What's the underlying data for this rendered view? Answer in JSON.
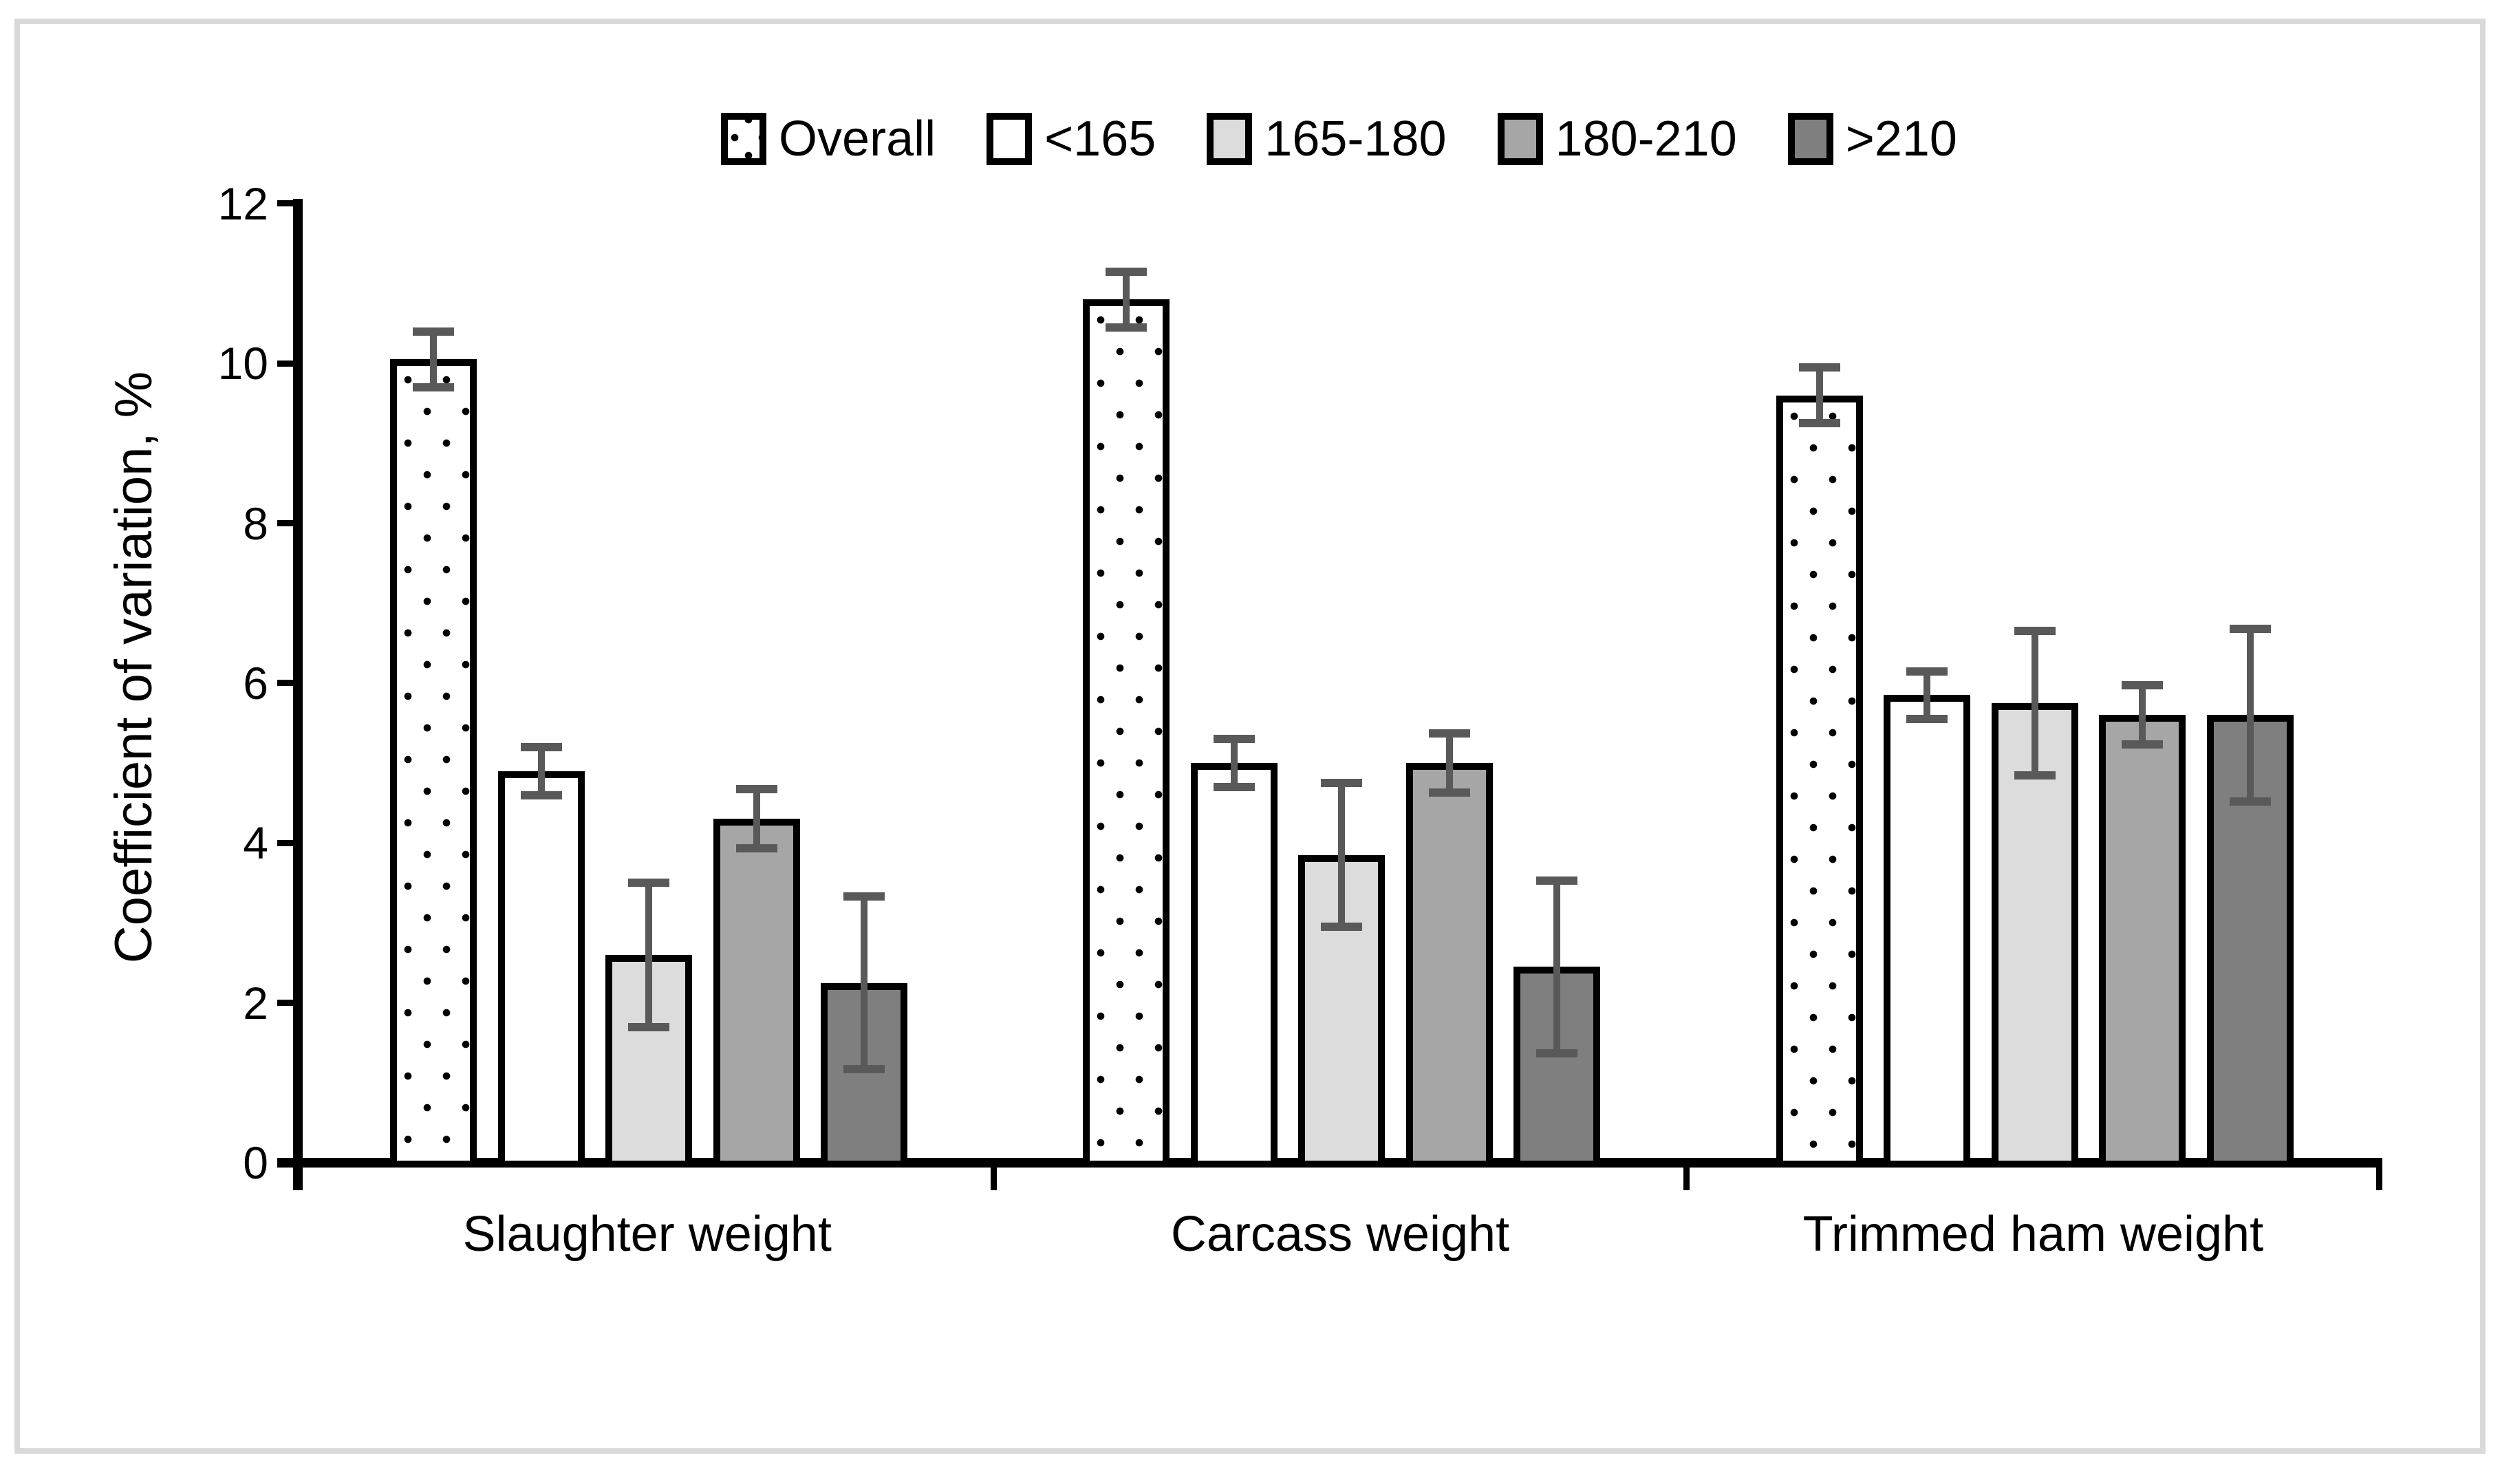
{
  "figure": {
    "frame_border_color": "#d9d9d9",
    "background_color": "#ffffff",
    "axis_color": "#000000",
    "error_bar_color": "#595959"
  },
  "chart_data": {
    "type": "bar",
    "title": "",
    "xlabel": "",
    "ylabel": "Coefficient of variation, %",
    "ylim": [
      0,
      12
    ],
    "yticks": [
      0,
      2,
      4,
      6,
      8,
      10,
      12
    ],
    "grid": false,
    "legend_position": "top-center",
    "error_bars": true,
    "categories": [
      "Slaughter weight",
      "Carcass weight",
      "Trimmed ham weight"
    ],
    "series": [
      {
        "name": "Overall",
        "fill": "dot-pattern",
        "values": [
          10.05,
          10.8,
          9.6
        ],
        "errors": [
          0.35,
          0.35,
          0.35
        ]
      },
      {
        "name": "<165",
        "fill": "#ffffff",
        "values": [
          4.9,
          5.0,
          5.85
        ],
        "errors": [
          0.3,
          0.3,
          0.3
        ]
      },
      {
        "name": "165-180",
        "fill": "#dcdcdc",
        "values": [
          2.6,
          3.85,
          5.75
        ],
        "errors": [
          0.9,
          0.9,
          0.9
        ]
      },
      {
        "name": "180-210",
        "fill": "#a6a6a6",
        "values": [
          4.3,
          5.0,
          5.6
        ],
        "errors": [
          0.37,
          0.37,
          0.37
        ]
      },
      {
        "name": ">210",
        "fill": "#7f7f7f",
        "values": [
          2.25,
          2.45,
          5.6
        ],
        "errors": [
          1.08,
          1.08,
          1.08
        ]
      }
    ]
  }
}
